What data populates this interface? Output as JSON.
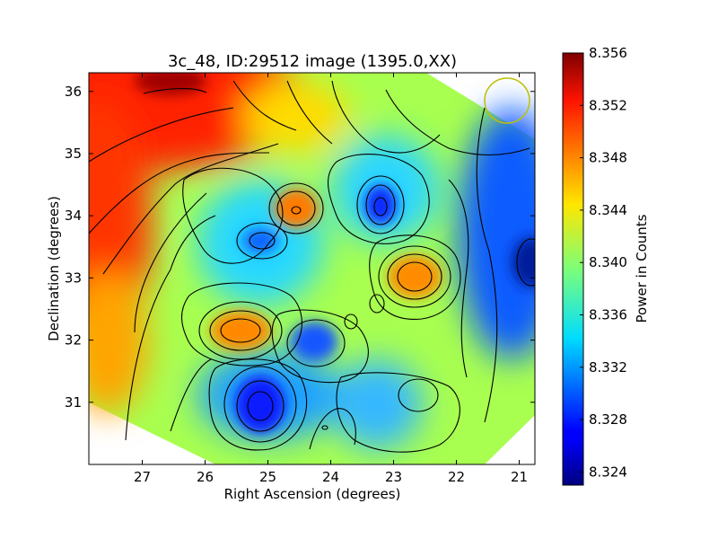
{
  "chart_data": {
    "type": "heatmap",
    "title": "3c_48, ID:29512 image (1395.0,XX)",
    "xlabel": "Right Ascension (degrees)",
    "ylabel": "Declination (degrees)",
    "xlim": [
      27.85,
      20.75
    ],
    "ylim": [
      30.0,
      36.3
    ],
    "x_ticks": [
      27,
      26,
      25,
      24,
      23,
      22,
      21
    ],
    "y_ticks": [
      31,
      32,
      33,
      34,
      35,
      36
    ],
    "colorbar": {
      "label": "Power in Counts",
      "range": [
        8.323,
        8.356
      ],
      "ticks": [
        "8.356",
        "8.352",
        "8.348",
        "8.344",
        "8.340",
        "8.336",
        "8.332",
        "8.328",
        "8.324"
      ],
      "colormap": "jet"
    },
    "beam_marker": {
      "ra": 21.2,
      "dec": 35.8,
      "color": "#bfbf00"
    },
    "features": [
      {
        "ra": 26.2,
        "dec": 36.1,
        "value": 8.356,
        "kind": "max"
      },
      {
        "ra": 27.6,
        "dec": 33.4,
        "value": 8.354,
        "kind": "max"
      },
      {
        "ra": 24.55,
        "dec": 34.1,
        "value": 8.349,
        "kind": "local-max"
      },
      {
        "ra": 25.35,
        "dec": 32.15,
        "value": 8.349,
        "kind": "local-max"
      },
      {
        "ra": 22.6,
        "dec": 33.0,
        "value": 8.348,
        "kind": "local-max"
      },
      {
        "ra": 23.2,
        "dec": 34.15,
        "value": 8.326,
        "kind": "local-min"
      },
      {
        "ra": 25.15,
        "dec": 33.55,
        "value": 8.329,
        "kind": "local-min"
      },
      {
        "ra": 25.05,
        "dec": 30.95,
        "value": 8.326,
        "kind": "local-min"
      },
      {
        "ra": 20.9,
        "dec": 33.3,
        "value": 8.324,
        "kind": "min"
      }
    ]
  }
}
